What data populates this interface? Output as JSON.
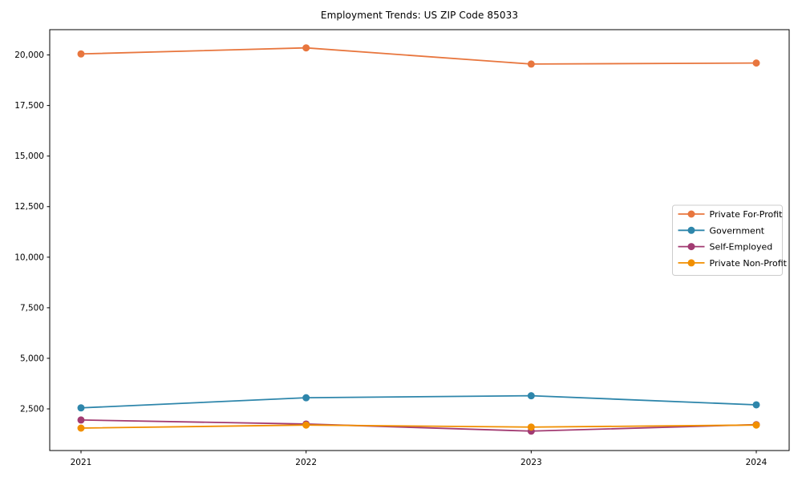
{
  "chart_data": {
    "type": "line",
    "title": "Employment Trends: US ZIP Code 85033",
    "x": [
      "2021",
      "2022",
      "2023",
      "2024"
    ],
    "series": [
      {
        "name": "Private For-Profit",
        "color": "#E8763E",
        "values": [
          20050,
          20350,
          19550,
          19600
        ]
      },
      {
        "name": "Government",
        "color": "#2E86AB",
        "values": [
          2550,
          3050,
          3150,
          2700
        ]
      },
      {
        "name": "Self-Employed",
        "color": "#A23B72",
        "values": [
          1950,
          1750,
          1400,
          1720
        ]
      },
      {
        "name": "Private Non-Profit",
        "color": "#F18F01",
        "values": [
          1550,
          1700,
          1600,
          1700
        ]
      }
    ],
    "xlabel": "",
    "ylabel": "",
    "ylim": [
      440,
      21250
    ],
    "yticks": [
      2500,
      5000,
      7500,
      10000,
      12500,
      15000,
      17500,
      20000
    ],
    "grid": false,
    "legend_position": "center right",
    "marker": "circle",
    "axis_color": "#000000",
    "text_color": "#000000",
    "plot_background": "#ffffff"
  }
}
